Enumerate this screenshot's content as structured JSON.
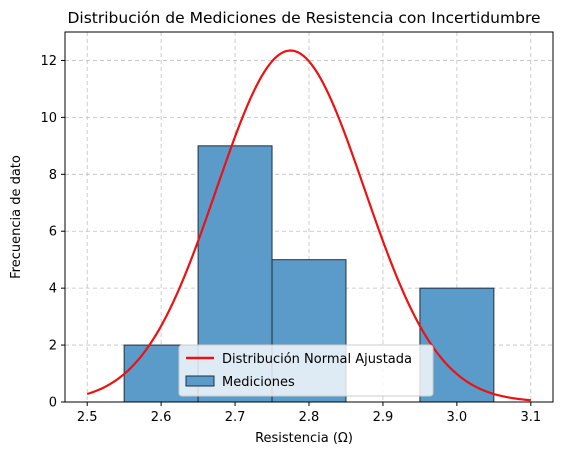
{
  "chart_data": {
    "type": "bar",
    "title": "Distribución de Mediciones de Resistencia con Incertidumbre",
    "xlabel": "Resistencia (Ω)",
    "ylabel": "Frecuencia de dato",
    "xlim": [
      2.47,
      3.13
    ],
    "ylim": [
      0,
      13
    ],
    "grid": true,
    "legend_position": "bottom-center",
    "x_ticks": [
      "2.5",
      "2.6",
      "2.7",
      "2.8",
      "2.9",
      "3.0",
      "3.1"
    ],
    "x_tick_values": [
      2.5,
      2.6,
      2.7,
      2.8,
      2.9,
      3.0,
      3.1
    ],
    "y_ticks": [
      "0",
      "2",
      "4",
      "6",
      "8",
      "10",
      "12"
    ],
    "y_tick_values": [
      0,
      2,
      4,
      6,
      8,
      10,
      12
    ],
    "histogram": {
      "name": "Mediciones",
      "color": "#5b9bc9",
      "edge_color": "#1f2f3f",
      "bins": [
        {
          "start": 2.55,
          "end": 2.65,
          "count": 2
        },
        {
          "start": 2.65,
          "end": 2.75,
          "count": 9
        },
        {
          "start": 2.75,
          "end": 2.85,
          "count": 5
        },
        {
          "start": 2.85,
          "end": 2.95,
          "count": 0
        },
        {
          "start": 2.95,
          "end": 3.05,
          "count": 4
        }
      ]
    },
    "normal_fit": {
      "name": "Distribución Normal Ajustada",
      "color": "#ee1111",
      "mean": 2.775,
      "std": 0.1,
      "peak": 12.35,
      "x_range": [
        2.5,
        3.1
      ]
    }
  }
}
